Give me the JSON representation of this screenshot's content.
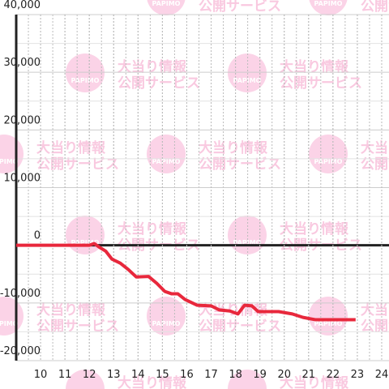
{
  "chart_data": {
    "type": "line",
    "x": [
      9,
      12,
      12.2,
      12.4,
      12.67,
      12.93,
      13.27,
      13.6,
      13.93,
      14.43,
      14.77,
      15.1,
      15.37,
      15.63,
      15.93,
      16.43,
      17,
      17.33,
      17.77,
      18.1,
      18.37,
      18.67,
      18.93,
      19.77,
      20.33,
      20.77,
      21.27,
      22.93
    ],
    "series": [
      {
        "color": "#e8283c",
        "values": [
          0,
          0,
          300,
          -300,
          -1000,
          -2400,
          -3100,
          -4200,
          -5500,
          -5400,
          -6600,
          -8000,
          -8400,
          -8400,
          -9400,
          -10400,
          -10500,
          -11200,
          -11400,
          -11900,
          -10400,
          -10500,
          -11500,
          -11500,
          -11900,
          -12500,
          -12900,
          -12900
        ]
      }
    ],
    "xlim": [
      9,
      24.3
    ],
    "xticks": [
      10,
      11,
      12,
      13,
      14,
      15,
      16,
      17,
      18,
      19,
      20,
      21,
      22,
      23,
      24
    ],
    "ylim": [
      -20000,
      40000
    ],
    "yticks": [
      {
        "value": -20000,
        "label": "-20,000"
      },
      {
        "value": -10000,
        "label": "-10,000"
      },
      0,
      {
        "value": 10000,
        "label": "10,000"
      },
      {
        "value": 20000,
        "label": "20,000"
      },
      {
        "value": 30000,
        "label": "30,000"
      },
      {
        "value": 40000,
        "label": "40,000"
      }
    ],
    "grid": true,
    "watermark": {
      "logo": "PAPIMO",
      "line1": "大当り情報",
      "line2": "公開サービス"
    }
  }
}
